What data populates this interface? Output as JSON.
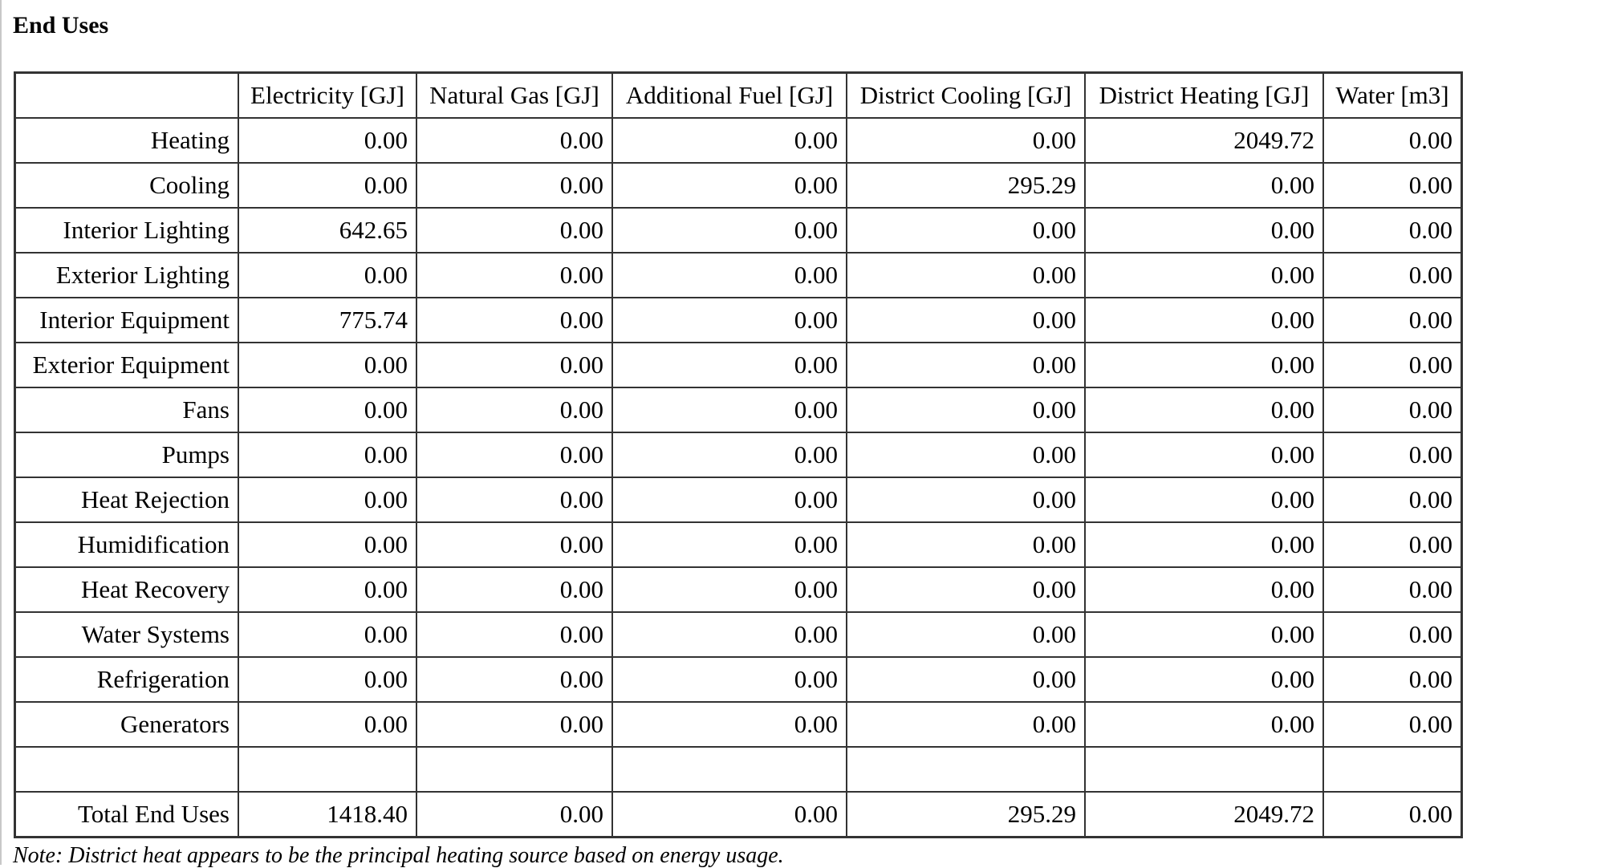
{
  "title": "End Uses",
  "columns": [
    "",
    "Electricity [GJ]",
    "Natural Gas [GJ]",
    "Additional Fuel [GJ]",
    "District Cooling [GJ]",
    "District Heating [GJ]",
    "Water [m3]"
  ],
  "rows": [
    {
      "label": "Heating",
      "values": [
        "0.00",
        "0.00",
        "0.00",
        "0.00",
        "2049.72",
        "0.00"
      ]
    },
    {
      "label": "Cooling",
      "values": [
        "0.00",
        "0.00",
        "0.00",
        "295.29",
        "0.00",
        "0.00"
      ]
    },
    {
      "label": "Interior Lighting",
      "values": [
        "642.65",
        "0.00",
        "0.00",
        "0.00",
        "0.00",
        "0.00"
      ]
    },
    {
      "label": "Exterior Lighting",
      "values": [
        "0.00",
        "0.00",
        "0.00",
        "0.00",
        "0.00",
        "0.00"
      ]
    },
    {
      "label": "Interior Equipment",
      "values": [
        "775.74",
        "0.00",
        "0.00",
        "0.00",
        "0.00",
        "0.00"
      ]
    },
    {
      "label": "Exterior Equipment",
      "values": [
        "0.00",
        "0.00",
        "0.00",
        "0.00",
        "0.00",
        "0.00"
      ]
    },
    {
      "label": "Fans",
      "values": [
        "0.00",
        "0.00",
        "0.00",
        "0.00",
        "0.00",
        "0.00"
      ]
    },
    {
      "label": "Pumps",
      "values": [
        "0.00",
        "0.00",
        "0.00",
        "0.00",
        "0.00",
        "0.00"
      ]
    },
    {
      "label": "Heat Rejection",
      "values": [
        "0.00",
        "0.00",
        "0.00",
        "0.00",
        "0.00",
        "0.00"
      ]
    },
    {
      "label": "Humidification",
      "values": [
        "0.00",
        "0.00",
        "0.00",
        "0.00",
        "0.00",
        "0.00"
      ]
    },
    {
      "label": "Heat Recovery",
      "values": [
        "0.00",
        "0.00",
        "0.00",
        "0.00",
        "0.00",
        "0.00"
      ]
    },
    {
      "label": "Water Systems",
      "values": [
        "0.00",
        "0.00",
        "0.00",
        "0.00",
        "0.00",
        "0.00"
      ]
    },
    {
      "label": "Refrigeration",
      "values": [
        "0.00",
        "0.00",
        "0.00",
        "0.00",
        "0.00",
        "0.00"
      ]
    },
    {
      "label": "Generators",
      "values": [
        "0.00",
        "0.00",
        "0.00",
        "0.00",
        "0.00",
        "0.00"
      ]
    },
    {
      "label": "",
      "values": [
        "",
        "",
        "",
        "",
        "",
        ""
      ]
    },
    {
      "label": "Total End Uses",
      "values": [
        "1418.40",
        "0.00",
        "0.00",
        "295.29",
        "2049.72",
        "0.00"
      ]
    }
  ],
  "note": "Note: District heat appears to be the principal heating source based on energy usage."
}
